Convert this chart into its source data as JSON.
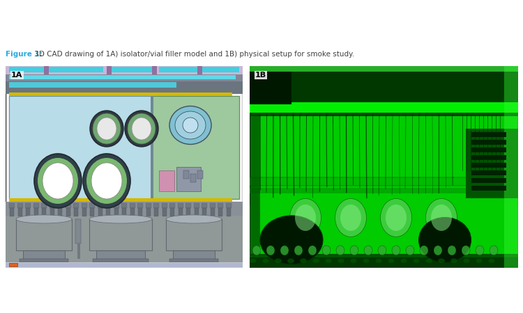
{
  "figure_width": 7.5,
  "figure_height": 4.5,
  "dpi": 100,
  "background_color": "#ffffff",
  "caption_text_bold": "Figure 1:",
  "caption_text_normal": " 3D CAD drawing of 1A) isolator/vial filler model and 1B) physical setup for smoke study.",
  "caption_color_bold": "#29abe2",
  "caption_color_normal": "#414042",
  "caption_fontsize": 7.5,
  "label_1A": "1A",
  "label_1B": "1B",
  "label_fontsize": 8,
  "label_color_1A": "#000000",
  "label_color_1B": "#000000"
}
